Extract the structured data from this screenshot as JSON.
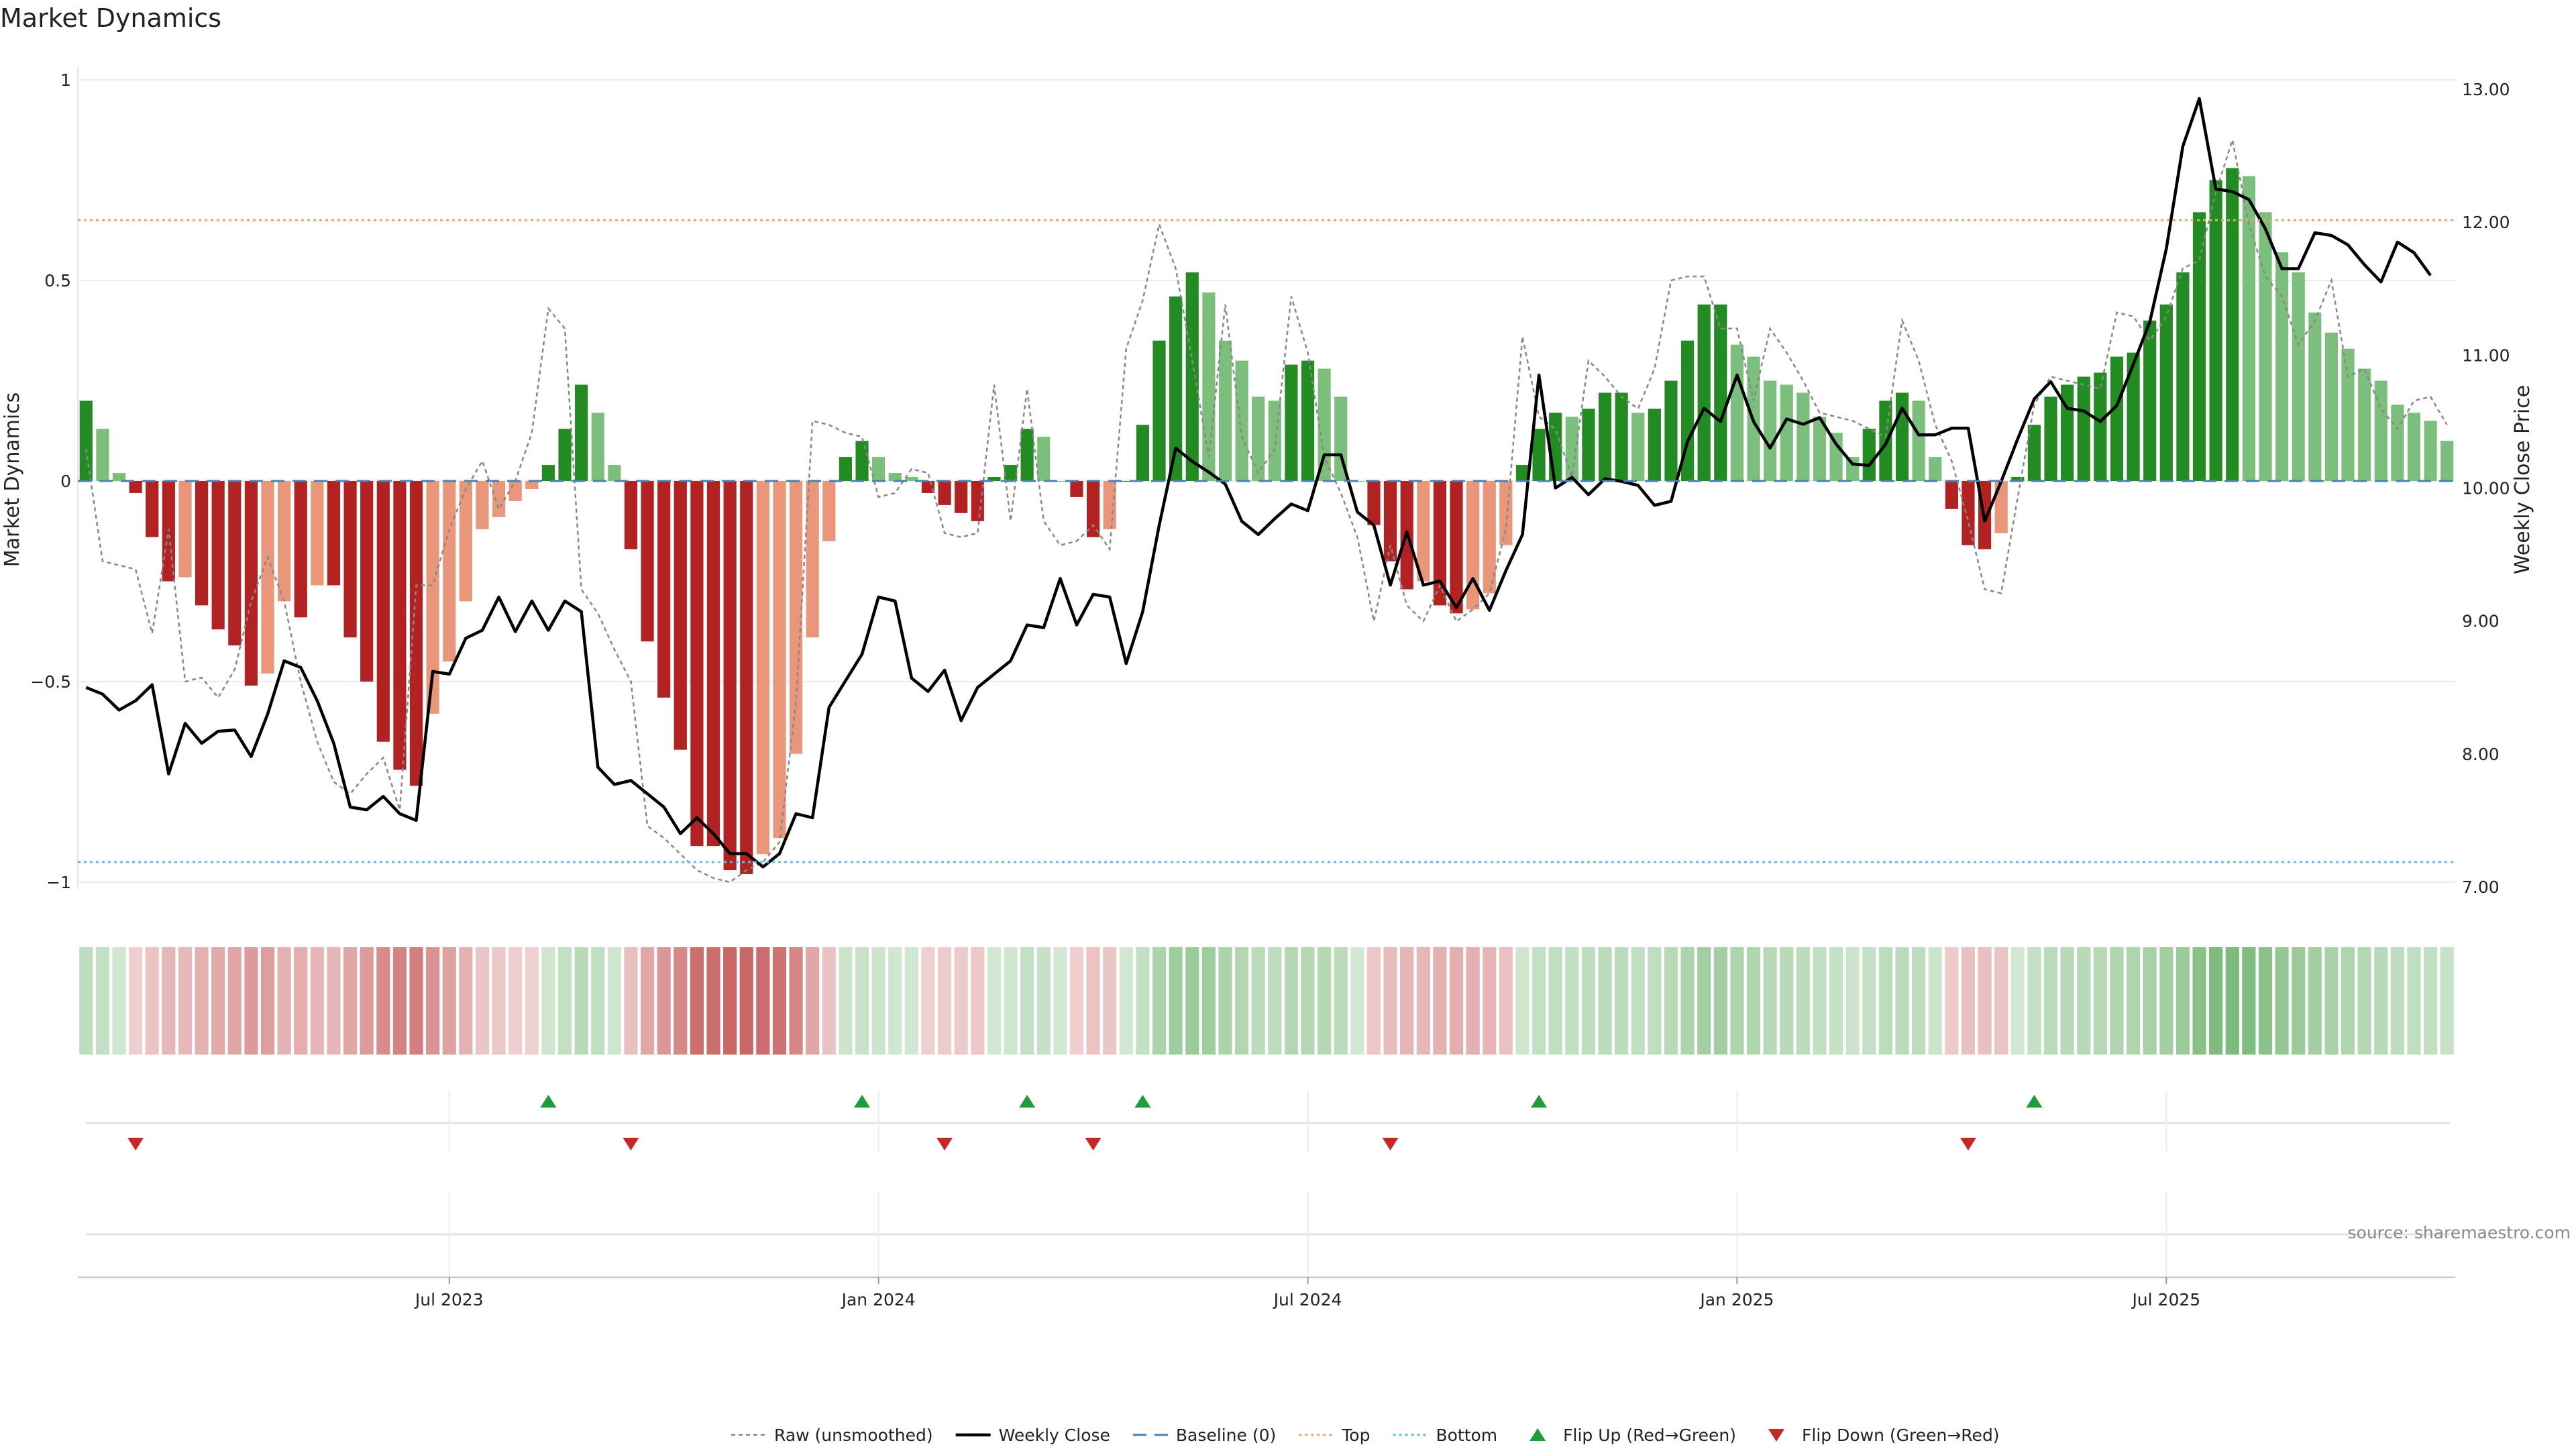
{
  "chart_data": {
    "type": "bar",
    "title": "Market Dynamics",
    "ylabel": "Market Dynamics",
    "y2label": "Weekly Close Price",
    "ylim": [
      -1.03,
      1.03
    ],
    "y2lim": [
      7.0,
      13.0
    ],
    "yticks": [
      {
        "value": 1,
        "label": "1"
      },
      {
        "value": 0.5,
        "label": "0.5"
      },
      {
        "value": 0,
        "label": "0"
      },
      {
        "value": -0.5,
        "label": "−0.5"
      },
      {
        "value": -1,
        "label": "−1"
      }
    ],
    "y2ticks": [
      {
        "value": 13,
        "label": "13.00"
      },
      {
        "value": 12,
        "label": "12.00"
      },
      {
        "value": 11,
        "label": "11.00"
      },
      {
        "value": 10,
        "label": "10.00"
      },
      {
        "value": 9,
        "label": "9.00"
      },
      {
        "value": 8,
        "label": "8.00"
      },
      {
        "value": 7,
        "label": "7.00"
      }
    ],
    "xticks": [
      {
        "index": 22,
        "label": "Jul 2023"
      },
      {
        "index": 48,
        "label": "Jan 2024"
      },
      {
        "index": 74,
        "label": "Jul 2024"
      },
      {
        "index": 100,
        "label": "Jan 2025"
      },
      {
        "index": 126,
        "label": "Jul 2025"
      }
    ],
    "reference_lines": {
      "top": 0.65,
      "bottom": -0.95,
      "baseline": 0
    },
    "x_count": 144,
    "series": [
      {
        "name": "Weekly Close",
        "kind": "price",
        "values": [
          8.5,
          8.45,
          8.33,
          8.4,
          8.52,
          7.85,
          8.23,
          8.08,
          8.17,
          8.18,
          7.98,
          8.3,
          8.7,
          8.65,
          8.4,
          8.08,
          7.6,
          7.58,
          7.68,
          7.55,
          7.5,
          8.62,
          8.6,
          8.87,
          8.93,
          9.18,
          8.92,
          9.15,
          8.93,
          9.15,
          9.07,
          7.9,
          7.77,
          7.8,
          7.7,
          7.6,
          7.4,
          7.52,
          7.4,
          7.25,
          7.25,
          7.15,
          7.25,
          7.55,
          7.52,
          8.35,
          8.55,
          8.75,
          9.18,
          9.15,
          8.57,
          8.47,
          8.63,
          8.25,
          8.5,
          8.6,
          8.7,
          8.97,
          8.95,
          9.32,
          8.97,
          9.2,
          9.18,
          8.68,
          9.07,
          9.72,
          10.3,
          10.2,
          10.12,
          10.03,
          9.75,
          9.65,
          9.77,
          9.88,
          9.83,
          10.25,
          10.25,
          9.82,
          9.72,
          9.27,
          9.67,
          9.27,
          9.3,
          9.1,
          9.32,
          9.08,
          9.38,
          9.65,
          10.85,
          10.0,
          10.08,
          9.95,
          10.07,
          10.05,
          10.02,
          9.87,
          9.9,
          10.35,
          10.6,
          10.5,
          10.85,
          10.5,
          10.3,
          10.52,
          10.48,
          10.53,
          10.33,
          10.18,
          10.17,
          10.33,
          10.6,
          10.4,
          10.4,
          10.45,
          10.45,
          9.75,
          10.05,
          10.37,
          10.67,
          10.8,
          10.6,
          10.58,
          10.5,
          10.62,
          10.93,
          11.25,
          11.8,
          12.57,
          12.93,
          12.25,
          12.23,
          12.17,
          11.95,
          11.65,
          11.65,
          11.92,
          11.9,
          11.83,
          11.68,
          11.55,
          11.85,
          11.77,
          11.6
        ]
      },
      {
        "name": "Raw (unsmoothed)",
        "kind": "raw",
        "values": [
          0.08,
          -0.2,
          -0.21,
          -0.22,
          -0.38,
          -0.12,
          -0.5,
          -0.49,
          -0.54,
          -0.47,
          -0.3,
          -0.19,
          -0.3,
          -0.5,
          -0.65,
          -0.75,
          -0.78,
          -0.73,
          -0.69,
          -0.82,
          -0.26,
          -0.26,
          -0.12,
          -0.02,
          0.05,
          -0.07,
          0.0,
          0.12,
          0.43,
          0.38,
          -0.27,
          -0.33,
          -0.42,
          -0.5,
          -0.86,
          -0.89,
          -0.93,
          -0.97,
          -0.99,
          -1.0,
          -0.97,
          -0.95,
          -0.9,
          -0.55,
          0.15,
          0.14,
          0.12,
          0.11,
          -0.04,
          -0.03,
          0.03,
          0.02,
          -0.13,
          -0.14,
          -0.13,
          0.24,
          -0.1,
          0.23,
          -0.1,
          -0.16,
          -0.15,
          -0.11,
          -0.17,
          0.33,
          0.45,
          0.64,
          0.53,
          0.3,
          0.06,
          0.44,
          0.11,
          0.02,
          0.08,
          0.46,
          0.32,
          0.06,
          -0.03,
          -0.14,
          -0.35,
          -0.16,
          -0.31,
          -0.35,
          -0.26,
          -0.35,
          -0.32,
          -0.28,
          -0.12,
          0.36,
          0.16,
          0.13,
          0.01,
          0.3,
          0.26,
          0.21,
          0.18,
          0.28,
          0.5,
          0.51,
          0.51,
          0.38,
          0.38,
          0.2,
          0.38,
          0.32,
          0.25,
          0.17,
          0.16,
          0.15,
          0.13,
          0.11,
          0.4,
          0.3,
          0.14,
          0.05,
          -0.1,
          -0.27,
          -0.28,
          -0.04,
          0.19,
          0.26,
          0.25,
          0.24,
          0.23,
          0.42,
          0.41,
          0.35,
          0.41,
          0.53,
          0.55,
          0.72,
          0.85,
          0.64,
          0.51,
          0.46,
          0.34,
          0.4,
          0.5,
          0.26,
          0.28,
          0.18,
          0.13,
          0.2,
          0.21,
          0.14
        ]
      },
      {
        "name": "Market Dynamics",
        "kind": "bars",
        "values": [
          0.2,
          0.13,
          0.02,
          -0.03,
          -0.14,
          -0.25,
          -0.24,
          -0.31,
          -0.37,
          -0.41,
          -0.51,
          -0.48,
          -0.3,
          -0.34,
          -0.26,
          -0.26,
          -0.39,
          -0.5,
          -0.65,
          -0.72,
          -0.76,
          -0.58,
          -0.45,
          -0.3,
          -0.12,
          -0.09,
          -0.05,
          -0.02,
          0.04,
          0.13,
          0.24,
          0.17,
          0.04,
          -0.17,
          -0.4,
          -0.54,
          -0.67,
          -0.91,
          -0.91,
          -0.97,
          -0.98,
          -0.93,
          -0.89,
          -0.68,
          -0.39,
          -0.15,
          0.06,
          0.1,
          0.06,
          0.02,
          0.01,
          -0.03,
          -0.06,
          -0.08,
          -0.1,
          0.01,
          0.04,
          0.13,
          0.11,
          0.0,
          -0.04,
          -0.14,
          -0.12,
          0.0,
          0.14,
          0.35,
          0.46,
          0.52,
          0.47,
          0.35,
          0.3,
          0.21,
          0.2,
          0.29,
          0.3,
          0.28,
          0.21,
          0.0,
          -0.11,
          -0.2,
          -0.27,
          -0.25,
          -0.31,
          -0.33,
          -0.32,
          -0.28,
          -0.16,
          0.04,
          0.13,
          0.17,
          0.16,
          0.18,
          0.22,
          0.22,
          0.17,
          0.18,
          0.25,
          0.35,
          0.44,
          0.44,
          0.34,
          0.31,
          0.25,
          0.24,
          0.22,
          0.16,
          0.12,
          0.06,
          0.13,
          0.2,
          0.22,
          0.2,
          0.06,
          -0.07,
          -0.16,
          -0.17,
          -0.13,
          0.01,
          0.14,
          0.21,
          0.24,
          0.26,
          0.27,
          0.31,
          0.32,
          0.4,
          0.44,
          0.52,
          0.67,
          0.75,
          0.78,
          0.76,
          0.67,
          0.57,
          0.52,
          0.42,
          0.37,
          0.33,
          0.28,
          0.25,
          0.19,
          0.17,
          0.15,
          0.1
        ]
      },
      {
        "name": "Baseline (0)",
        "kind": "baseline"
      },
      {
        "name": "Top",
        "kind": "top"
      },
      {
        "name": "Bottom",
        "kind": "bottom"
      },
      {
        "name": "Flip Up (Red→Green)",
        "kind": "flip_up",
        "indices": [
          28,
          47,
          57,
          64,
          88,
          118
        ]
      },
      {
        "name": "Flip Down (Green→Red)",
        "kind": "flip_down",
        "indices": [
          3,
          33,
          52,
          61,
          79,
          114
        ]
      }
    ],
    "legend_position": "bottom-center",
    "grid": true
  },
  "source": "source: sharemaestro.com",
  "colors": {
    "strong_green": "#228B22",
    "light_green": "#7CBF7C",
    "strong_red": "#B22222",
    "light_red": "#E9967A",
    "price_line": "#000000",
    "raw_line": "#888888",
    "baseline": "#4682B4",
    "top": "#F4A460",
    "bottom": "#5BC0DE",
    "flip_up": "#1E9C3C",
    "flip_down": "#C62828"
  },
  "legend": [
    {
      "name": "Raw (unsmoothed)",
      "symbol": "raw"
    },
    {
      "name": "Weekly Close",
      "symbol": "price"
    },
    {
      "name": "Baseline (0)",
      "symbol": "baseline"
    },
    {
      "name": "Top",
      "symbol": "top"
    },
    {
      "name": "Bottom",
      "symbol": "bottom"
    },
    {
      "name": "Flip Up (Red→Green)",
      "symbol": "flip_up"
    },
    {
      "name": "Flip Down (Green→Red)",
      "symbol": "flip_down"
    }
  ]
}
